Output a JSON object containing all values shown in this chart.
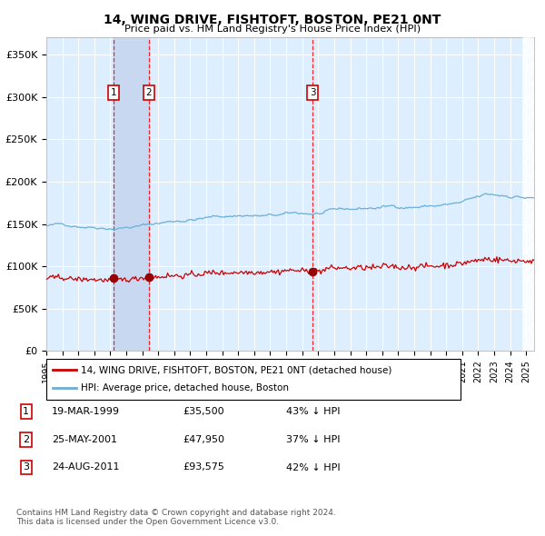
{
  "title": "14, WING DRIVE, FISHTOFT, BOSTON, PE21 0NT",
  "subtitle": "Price paid vs. HM Land Registry's House Price Index (HPI)",
  "ylabel_ticks": [
    "£0",
    "£50K",
    "£100K",
    "£150K",
    "£200K",
    "£250K",
    "£300K",
    "£350K"
  ],
  "ytick_values": [
    0,
    50000,
    100000,
    150000,
    200000,
    250000,
    300000,
    350000
  ],
  "ylim": [
    0,
    370000
  ],
  "xlim_start": 1995.0,
  "xlim_end": 2025.5,
  "transactions": [
    {
      "label": "1",
      "date_str": "19-MAR-1999",
      "date_num": 1999.21,
      "price": 35500,
      "pct": "43% ↓ HPI"
    },
    {
      "label": "2",
      "date_str": "25-MAY-2001",
      "date_num": 2001.4,
      "price": 47950,
      "pct": "37% ↓ HPI"
    },
    {
      "label": "3",
      "date_str": "24-AUG-2011",
      "date_num": 2011.65,
      "price": 93575,
      "pct": "42% ↓ HPI"
    }
  ],
  "hpi_line_color": "#6baed6",
  "price_line_color": "#cc0000",
  "marker_color": "#990000",
  "bg_color": "#ddeeff",
  "highlight_color": "#c8d8f0",
  "grid_color": "#ffffff",
  "legend_label_price": "14, WING DRIVE, FISHTOFT, BOSTON, PE21 0NT (detached house)",
  "legend_label_hpi": "HPI: Average price, detached house, Boston",
  "footnote": "Contains HM Land Registry data © Crown copyright and database right 2024.\nThis data is licensed under the Open Government Licence v3.0.",
  "hatch_color": "#bbbbbb",
  "transaction_box_color": "#cc0000"
}
